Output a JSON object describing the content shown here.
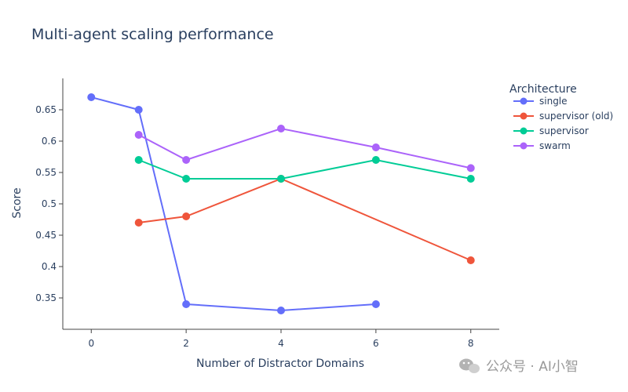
{
  "chart_data": {
    "type": "line",
    "title": "Multi-agent scaling performance",
    "xlabel": "Number of Distractor Domains",
    "ylabel": "Score",
    "xlim": [
      -0.6,
      8.6
    ],
    "ylim": [
      0.3,
      0.7
    ],
    "x_ticks": [
      0,
      2,
      4,
      6,
      8
    ],
    "x_tick_labels": [
      "0",
      "2",
      "4",
      "6",
      "8"
    ],
    "y_ticks": [
      0.35,
      0.4,
      0.45,
      0.5,
      0.55,
      0.6,
      0.65
    ],
    "y_tick_labels": [
      "0.35",
      "0.4",
      "0.45",
      "0.5",
      "0.55",
      "0.6",
      "0.65"
    ],
    "grid": false,
    "legend_title": "Architecture",
    "legend_position": "top-right outside plot",
    "series": [
      {
        "name": "single",
        "color": "#636efa",
        "points": [
          [
            0,
            0.67
          ],
          [
            1,
            0.65
          ],
          [
            2,
            0.34
          ],
          [
            4,
            0.33
          ],
          [
            6,
            0.34
          ]
        ]
      },
      {
        "name": "supervisor (old)",
        "color": "#ef553b",
        "points": [
          [
            1,
            0.47
          ],
          [
            2,
            0.48
          ],
          [
            4,
            0.54
          ],
          [
            8,
            0.41
          ]
        ]
      },
      {
        "name": "supervisor",
        "color": "#00cc96",
        "points": [
          [
            1,
            0.57
          ],
          [
            2,
            0.54
          ],
          [
            4,
            0.54
          ],
          [
            6,
            0.57
          ],
          [
            8,
            0.54
          ]
        ]
      },
      {
        "name": "swarm",
        "color": "#ab63fa",
        "points": [
          [
            1,
            0.61
          ],
          [
            2,
            0.57
          ],
          [
            4,
            0.62
          ],
          [
            6,
            0.59
          ],
          [
            8,
            0.557
          ]
        ]
      }
    ]
  },
  "watermark": {
    "text": "公众号 · AI小智",
    "icon": "wechat-icon"
  }
}
